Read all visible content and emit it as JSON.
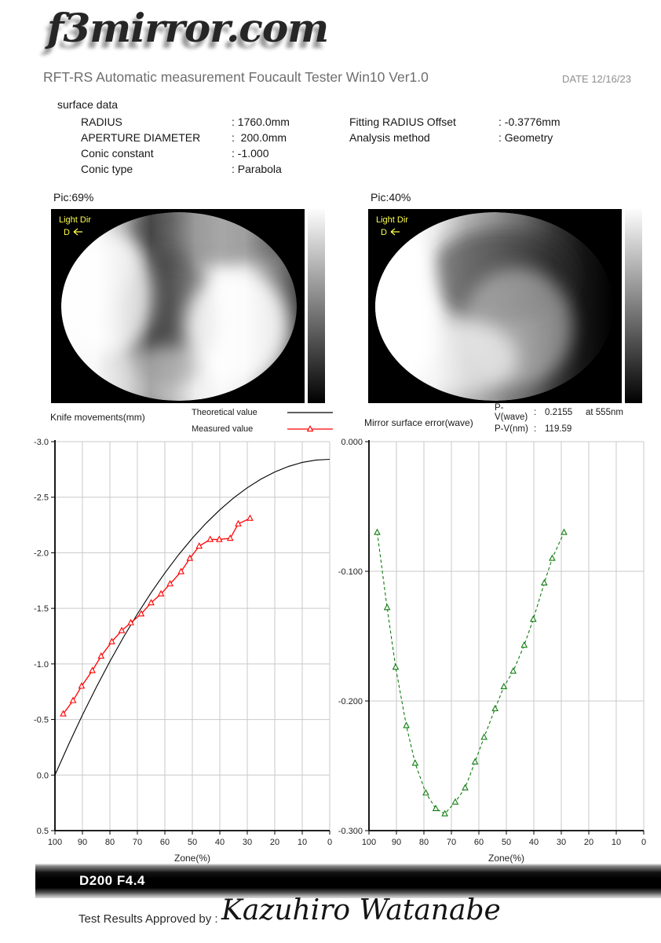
{
  "logo": "f3mirror.com",
  "header": {
    "title": "RFT-RS Automatic measurement Foucault Tester Win10 Ver1.0",
    "date": "DATE 12/16/23"
  },
  "surface_data": {
    "heading": "surface data",
    "left_rows": [
      {
        "label": "RADIUS",
        "colon": ":",
        "value": " 1760.0mm"
      },
      {
        "label": "APERTURE DIAMETER",
        "colon": ":",
        "value": "  200.0mm"
      },
      {
        "label": "Conic constant",
        "colon": ":",
        "value": " -1.000"
      },
      {
        "label": "Conic type",
        "colon": ":",
        "value": " Parabola"
      }
    ],
    "right_rows": [
      {
        "label": "Fitting RADIUS Offset",
        "colon": ":",
        "value": " -0.3776mm"
      },
      {
        "label": "Analysis method",
        "colon": ":",
        "value": " Geometry"
      }
    ]
  },
  "pictures": [
    {
      "label": "Pic:69%",
      "overlay_line1": "Light Dir",
      "overlay_line2": "D"
    },
    {
      "label": "Pic:40%",
      "overlay_line1": "Light Dir",
      "overlay_line2": "D"
    }
  ],
  "chart_data": [
    {
      "type": "line",
      "title": "Knife movements(mm)",
      "xlabel": "Zone(%)",
      "x_left": 100,
      "x_right": 0,
      "x_ticks": [
        100,
        90,
        80,
        70,
        60,
        50,
        40,
        30,
        20,
        10,
        0
      ],
      "y_top": -3.0,
      "y_bottom": 0.5,
      "y_ticks": [
        "-3.0",
        "-2.5",
        "-2.0",
        "-1.5",
        "-1.0",
        "-0.5",
        "0.0",
        "0.5"
      ],
      "grid": true,
      "legend": [
        {
          "label": "Theoretical value",
          "color": "#000000",
          "marker": false
        },
        {
          "label": "Measured value",
          "color": "#ff0000",
          "marker": true
        }
      ],
      "series": [
        {
          "name": "Theoretical value",
          "color": "#000000",
          "marker": false,
          "dash": null,
          "width": 1.1,
          "x": [
            100,
            95,
            90,
            85,
            80,
            75,
            70,
            65,
            60,
            55,
            50,
            45,
            40,
            35,
            30,
            25,
            20,
            15,
            10,
            5,
            0
          ],
          "y": [
            0.0,
            -0.277,
            -0.54,
            -0.788,
            -1.023,
            -1.243,
            -1.449,
            -1.641,
            -1.818,
            -1.982,
            -2.131,
            -2.266,
            -2.386,
            -2.493,
            -2.585,
            -2.663,
            -2.727,
            -2.777,
            -2.813,
            -2.834,
            -2.841
          ]
        },
        {
          "name": "Measured value",
          "color": "#ff0000",
          "marker": true,
          "dash": null,
          "width": 1.3,
          "x": [
            97.0,
            93.4,
            90.3,
            86.4,
            83.2,
            79.3,
            75.7,
            72.4,
            68.6,
            65.0,
            61.4,
            58.1,
            54.1,
            50.9,
            47.5,
            43.5,
            40.2,
            36.2,
            33.3,
            29.0
          ],
          "y": [
            -0.55,
            -0.67,
            -0.8,
            -0.94,
            -1.07,
            -1.2,
            -1.3,
            -1.37,
            -1.45,
            -1.55,
            -1.63,
            -1.72,
            -1.83,
            -1.95,
            -2.06,
            -2.12,
            -2.12,
            -2.13,
            -2.26,
            -2.31
          ]
        }
      ]
    },
    {
      "type": "line",
      "title": "Mirror surface error(wave)",
      "xlabel": "Zone(%)",
      "x_left": 100,
      "x_right": 0,
      "x_ticks": [
        100,
        90,
        80,
        70,
        60,
        50,
        40,
        30,
        20,
        10,
        0
      ],
      "y_top": 0.0,
      "y_bottom": -0.3,
      "y_ticks": [
        "0.000",
        "-0.100",
        "-0.200",
        "-0.300"
      ],
      "grid": true,
      "stats": [
        {
          "label": "P-V(wave)",
          "colon": ":",
          "value": "0.2155",
          "suffix": "at 555nm"
        },
        {
          "label": "P-V(nm)",
          "colon": ":",
          "value": "119.59",
          "suffix": ""
        }
      ],
      "series": [
        {
          "name": "Mirror surface error",
          "color": "#0f7d0f",
          "marker": true,
          "dash": "4 3",
          "width": 1.1,
          "x": [
            97.0,
            93.4,
            90.3,
            86.4,
            83.2,
            79.3,
            75.7,
            72.4,
            68.6,
            65.0,
            61.4,
            58.1,
            54.1,
            50.9,
            47.5,
            43.5,
            40.2,
            36.2,
            33.3,
            29.0
          ],
          "y": [
            -0.07,
            -0.128,
            -0.174,
            -0.219,
            -0.248,
            -0.271,
            -0.283,
            -0.287,
            -0.278,
            -0.267,
            -0.247,
            -0.228,
            -0.206,
            -0.189,
            -0.177,
            -0.157,
            -0.137,
            -0.109,
            -0.09,
            -0.07
          ]
        }
      ]
    }
  ],
  "footer": {
    "model": "D200 F4.4",
    "approved_label": "Test Results Approved by :",
    "signature": "Kazuhiro Watanabe"
  }
}
